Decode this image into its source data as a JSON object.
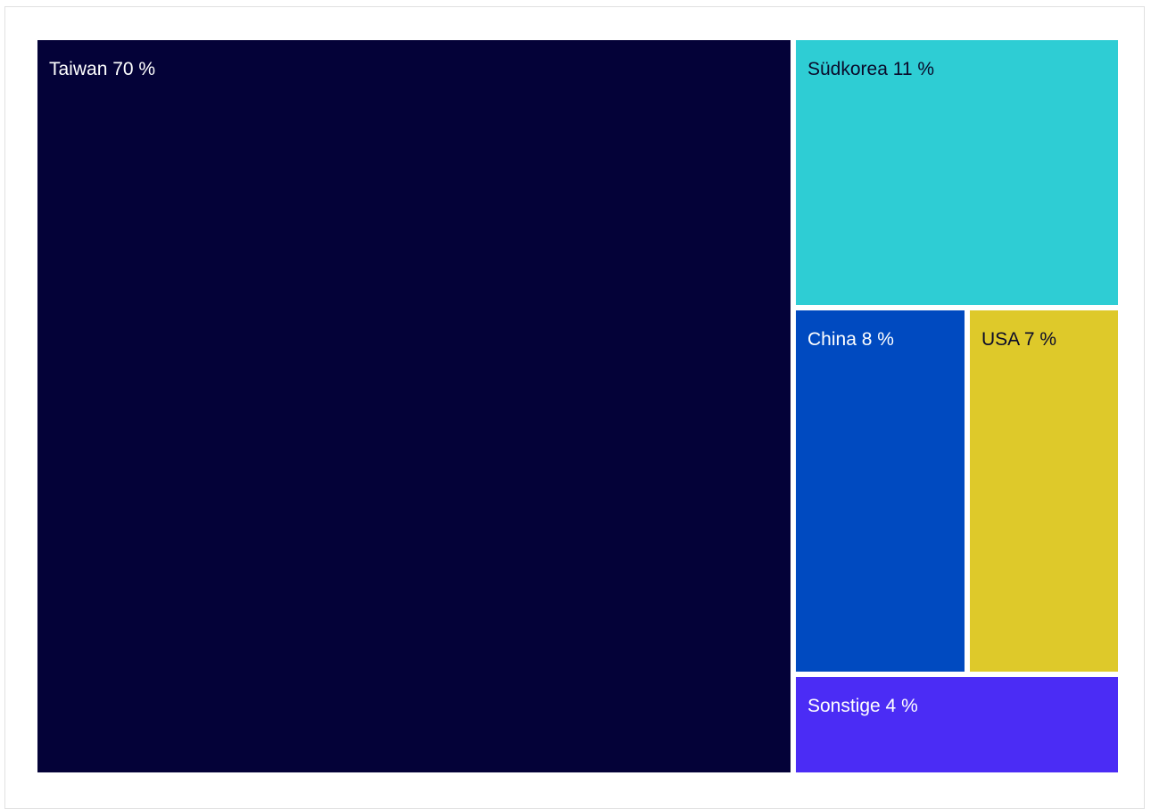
{
  "chart_data": {
    "type": "treemap",
    "title": "",
    "unit": "%",
    "items": [
      {
        "name": "Taiwan",
        "value": 70,
        "label": "Taiwan 70 %",
        "color": "#040238",
        "text_color": "#ffffff"
      },
      {
        "name": "Südkorea",
        "value": 11,
        "label": "Südkorea 11 %",
        "color": "#2ecdd4",
        "text_color": "#0a0a2a"
      },
      {
        "name": "China",
        "value": 8,
        "label": "China 8 %",
        "color": "#004ac0",
        "text_color": "#ffffff"
      },
      {
        "name": "USA",
        "value": 7,
        "label": "USA 7 %",
        "color": "#dec92a",
        "text_color": "#0a0a2a"
      },
      {
        "name": "Sonstige",
        "value": 4,
        "label": "Sonstige 4 %",
        "color": "#4b2cf5",
        "text_color": "#ffffff"
      }
    ]
  }
}
